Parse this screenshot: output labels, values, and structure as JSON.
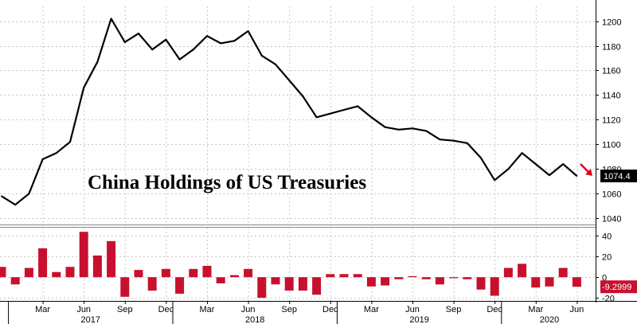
{
  "chart_data": [
    {
      "type": "line",
      "title": "China Holdings of US Treasuries",
      "ylim": [
        1035,
        1212
      ],
      "yticks": [
        1040,
        1060,
        1080,
        1100,
        1120,
        1140,
        1160,
        1180,
        1200
      ],
      "x": [
        "2016-12",
        "2017-01",
        "2017-02",
        "2017-03",
        "2017-04",
        "2017-05",
        "2017-06",
        "2017-07",
        "2017-08",
        "2017-09",
        "2017-10",
        "2017-11",
        "2017-12",
        "2018-01",
        "2018-02",
        "2018-03",
        "2018-04",
        "2018-05",
        "2018-06",
        "2018-07",
        "2018-08",
        "2018-09",
        "2018-10",
        "2018-11",
        "2018-12",
        "2019-01",
        "2019-02",
        "2019-03",
        "2019-04",
        "2019-05",
        "2019-06",
        "2019-07",
        "2019-08",
        "2019-09",
        "2019-10",
        "2019-11",
        "2019-12",
        "2020-01",
        "2020-02",
        "2020-03",
        "2020-04",
        "2020-05",
        "2020-06"
      ],
      "series": [
        {
          "values": [
            1058,
            1051,
            1060,
            1088,
            1093,
            1102,
            1146,
            1167,
            1202,
            1183,
            1190,
            1177,
            1185,
            1169,
            1177,
            1188,
            1182,
            1184,
            1192,
            1172,
            1165,
            1152,
            1139,
            1122,
            1125,
            1128,
            1131,
            1122,
            1114,
            1112,
            1113,
            1111,
            1104,
            1103,
            1101,
            1089,
            1071,
            1080,
            1093,
            1084,
            1075,
            1084,
            1074.4
          ],
          "color": "#000000"
        }
      ],
      "last_value_label": "1074.4",
      "last_value_arrow_color": "#e0001b"
    },
    {
      "type": "bar",
      "ylim": [
        -23,
        48
      ],
      "yticks": [
        -20,
        0,
        20,
        40
      ],
      "x": [
        "2016-12",
        "2017-01",
        "2017-02",
        "2017-03",
        "2017-04",
        "2017-05",
        "2017-06",
        "2017-07",
        "2017-08",
        "2017-09",
        "2017-10",
        "2017-11",
        "2017-12",
        "2018-01",
        "2018-02",
        "2018-03",
        "2018-04",
        "2018-05",
        "2018-06",
        "2018-07",
        "2018-08",
        "2018-09",
        "2018-10",
        "2018-11",
        "2018-12",
        "2019-01",
        "2019-02",
        "2019-03",
        "2019-04",
        "2019-05",
        "2019-06",
        "2019-07",
        "2019-08",
        "2019-09",
        "2019-10",
        "2019-11",
        "2019-12",
        "2020-01",
        "2020-02",
        "2020-03",
        "2020-04",
        "2020-05",
        "2020-06"
      ],
      "series": [
        {
          "values": [
            10,
            -7,
            9,
            28,
            5,
            10,
            44,
            21,
            35,
            -19,
            7,
            -13,
            8,
            -16,
            8,
            11,
            -6,
            2,
            8,
            -20,
            -7,
            -13,
            -13,
            -17,
            3,
            3,
            3,
            -9,
            -8,
            -2,
            1,
            -2,
            -7,
            -1,
            -2,
            -12,
            -18,
            9,
            13,
            -10,
            -9,
            9,
            -9.2999
          ],
          "color": "#c8102e"
        }
      ],
      "last_value_label": "-9.2999"
    }
  ],
  "x_axis": {
    "months": [
      "Mar",
      "Jun",
      "Sep",
      "Dec",
      "Mar",
      "Jun",
      "Sep",
      "Dec",
      "Mar",
      "Jun",
      "Sep",
      "Dec",
      "Mar",
      "Jun"
    ],
    "years": [
      "2017",
      "2018",
      "2019",
      "2020"
    ]
  },
  "colors": {
    "line": "#000000",
    "bar": "#c8102e",
    "badge_line_bg": "#000000",
    "badge_bar_bg": "#c8102e"
  }
}
